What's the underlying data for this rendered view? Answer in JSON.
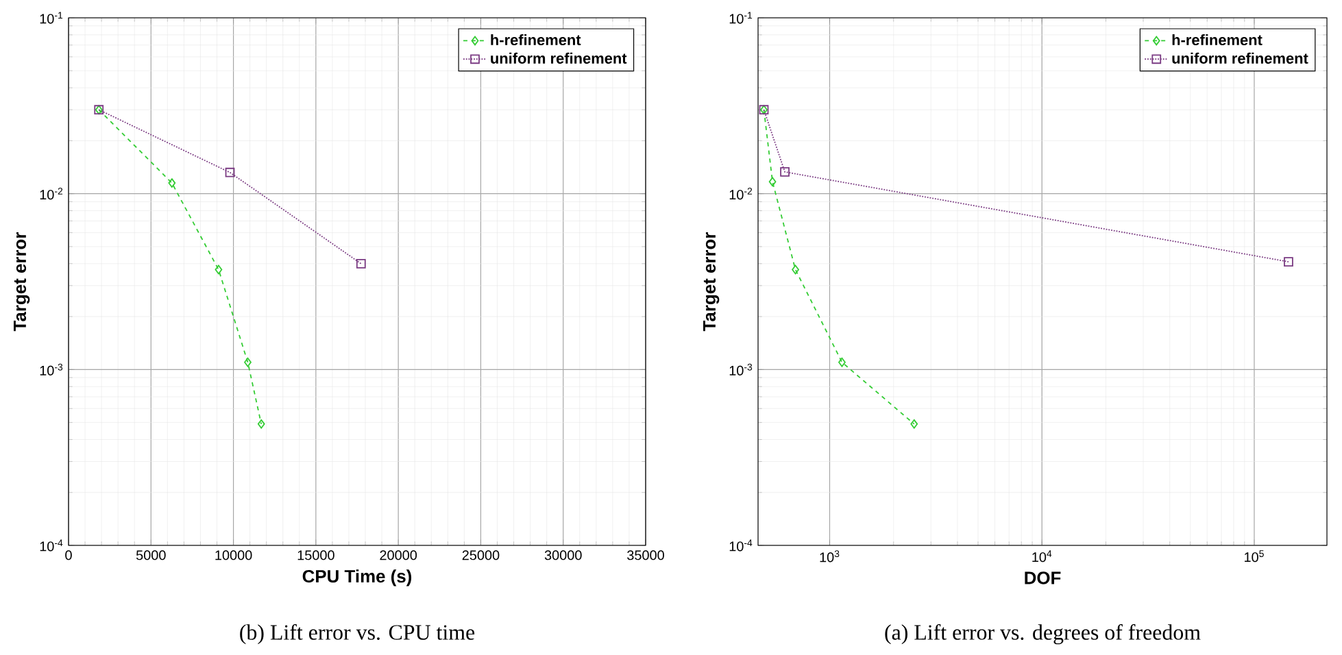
{
  "chart_data": [
    {
      "type": "line",
      "xlabel": "CPU Time (s)",
      "ylabel": "Target error",
      "log": "y",
      "grid": true,
      "legend": "top right",
      "xlim": [
        0,
        35000
      ],
      "xticks": [
        0,
        5000,
        10000,
        15000,
        20000,
        25000,
        30000,
        35000
      ],
      "ylim": [
        0.0001,
        0.1
      ],
      "yticks": [
        {
          "value": 0.0001,
          "label": "10$^{-4}$"
        },
        {
          "value": 0.001,
          "label": "10$^{-3}$"
        },
        {
          "value": 0.01,
          "label": "10$^{-2}$"
        },
        {
          "value": 0.1,
          "label": "10$^{-1}$"
        }
      ],
      "series": [
        {
          "name": "h-refinement",
          "color": "#33cc33",
          "marker": "diamond",
          "line_style": "dashed",
          "x": [
            1840,
            6270,
            9100,
            10870,
            11690
          ],
          "values": [
            0.03,
            0.0115,
            0.0037,
            0.0011,
            0.00049
          ]
        },
        {
          "name": "uniform refinement",
          "color": "#7a3a82",
          "marker": "square",
          "line_style": "dotted",
          "x": [
            1840,
            9790,
            17740
          ],
          "values": [
            0.03,
            0.0132,
            0.004
          ]
        }
      ],
      "annotations": [
        "(b) Lift error vs. CPU time"
      ]
    },
    {
      "type": "line",
      "xlabel": "DOF",
      "ylabel": "Target error",
      "log": "xy",
      "grid": true,
      "legend": "top right",
      "xlim": [
        460,
        220000
      ],
      "xticks": [
        {
          "value": 1000,
          "label": "10$^{3}$"
        },
        {
          "value": 10000,
          "label": "10$^{4}$"
        },
        {
          "value": 100000,
          "label": "10$^{5}$"
        }
      ],
      "ylim": [
        0.0001,
        0.1
      ],
      "yticks": [
        {
          "value": 0.0001,
          "label": "10$^{-4}$"
        },
        {
          "value": 0.001,
          "label": "10$^{-3}$"
        },
        {
          "value": 0.01,
          "label": "10$^{-2}$"
        },
        {
          "value": 0.1,
          "label": "10$^{-1}$"
        }
      ],
      "series": [
        {
          "name": "h-refinement",
          "color": "#33cc33",
          "marker": "diamond",
          "line_style": "dashed",
          "x": [
            490,
            538,
            690,
            1143,
            2500
          ],
          "values": [
            0.03,
            0.0117,
            0.0037,
            0.0011,
            0.00049
          ]
        },
        {
          "name": "uniform refinement",
          "color": "#7a3a82",
          "marker": "square",
          "line_style": "dotted",
          "x": [
            490,
            615,
            145000
          ],
          "values": [
            0.03,
            0.0133,
            0.0041
          ]
        }
      ],
      "annotations": [
        "(a) Lift error vs. degrees of freedom"
      ]
    }
  ]
}
